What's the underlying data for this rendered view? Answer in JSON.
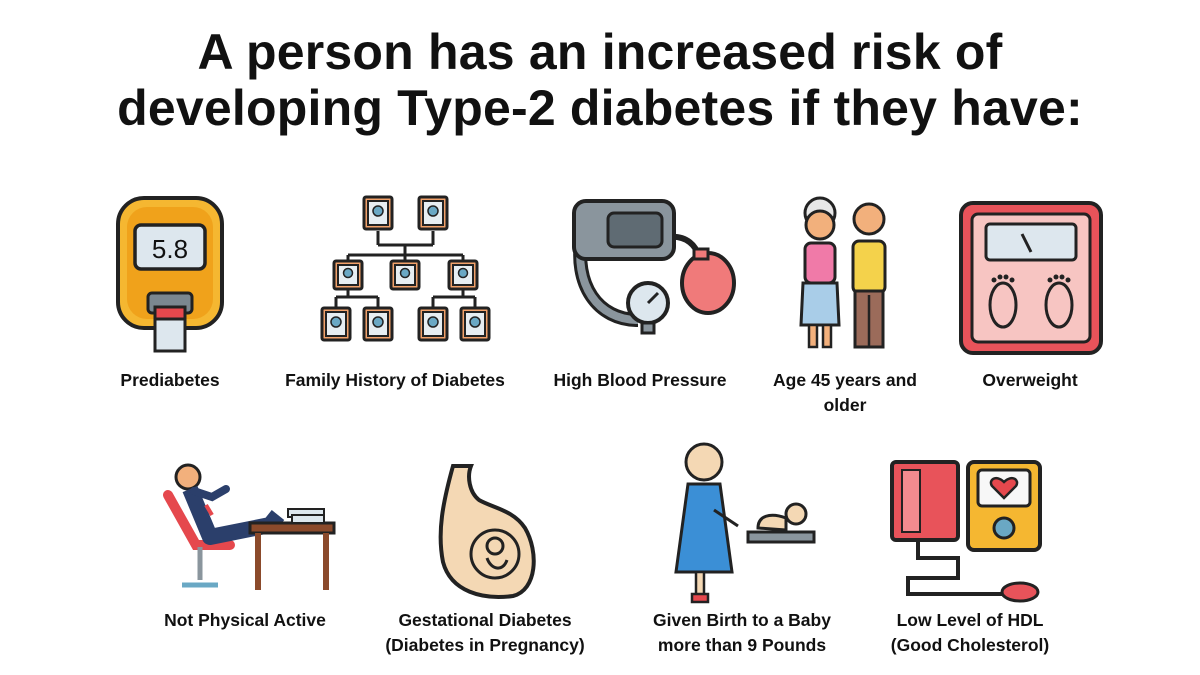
{
  "title": {
    "line1": "A person has an increased risk of",
    "line2": "developing Type-2 diabetes if they have:"
  },
  "risk_factors": [
    {
      "label": "Prediabetes",
      "icon": "glucose-meter-icon",
      "display_value": "5.8"
    },
    {
      "label": "Family History  of Diabetes",
      "icon": "family-tree-icon"
    },
    {
      "label": "High Blood  Pressure",
      "icon": "blood-pressure-cuff-icon"
    },
    {
      "label_line1": "Age 45 years and",
      "label_line2": "older",
      "icon": "elderly-couple-icon"
    },
    {
      "label": "Overweight",
      "icon": "bathroom-scale-icon"
    },
    {
      "label": "Not Physical Active",
      "icon": "reclining-person-icon"
    },
    {
      "label_line1": "Gestational Diabetes",
      "label_line2": "(Diabetes in Pregnancy)",
      "icon": "pregnant-belly-icon"
    },
    {
      "label_line1": "Given Birth to a Baby",
      "label_line2": "more than 9 Pounds",
      "icon": "mother-baby-icon"
    },
    {
      "label_line1": "Low Level of HDL",
      "label_line2": "(Good Cholesterol)",
      "icon": "blood-pressure-monitor-icon"
    }
  ]
}
